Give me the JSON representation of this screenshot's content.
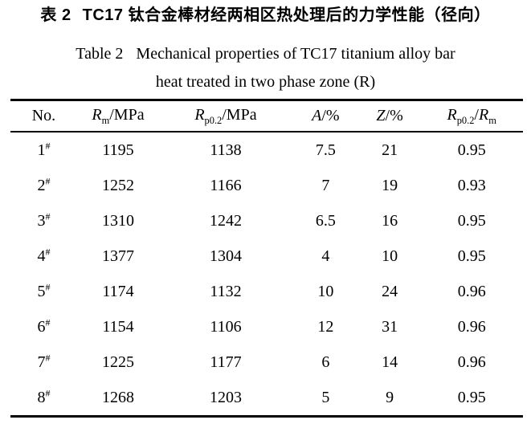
{
  "caption_zh": {
    "label": "表 2",
    "text": "TC17 钛合金棒材经两相区热处理后的力学性能（径向）"
  },
  "caption_en": {
    "label": "Table 2",
    "line1": "Mechanical properties of TC17 titanium alloy bar",
    "line2": "heat treated in two phase zone (R)"
  },
  "table": {
    "columns": [
      {
        "name": "no",
        "parts": [
          {
            "t": "No.",
            "s": "plain"
          }
        ]
      },
      {
        "name": "rm",
        "parts": [
          {
            "t": "R",
            "s": "italic"
          },
          {
            "t": "m",
            "s": "sub"
          },
          {
            "t": "/MPa",
            "s": "plain"
          }
        ]
      },
      {
        "name": "rp02",
        "parts": [
          {
            "t": "R",
            "s": "italic"
          },
          {
            "t": "p0.2",
            "s": "sub"
          },
          {
            "t": "/MPa",
            "s": "plain"
          }
        ]
      },
      {
        "name": "a",
        "parts": [
          {
            "t": "A",
            "s": "italic"
          },
          {
            "t": "/%",
            "s": "plain"
          }
        ]
      },
      {
        "name": "z",
        "parts": [
          {
            "t": "Z",
            "s": "italic"
          },
          {
            "t": "/%",
            "s": "plain"
          }
        ]
      },
      {
        "name": "ratio",
        "parts": [
          {
            "t": "R",
            "s": "italic"
          },
          {
            "t": "p0.2",
            "s": "sub"
          },
          {
            "t": "/",
            "s": "plain"
          },
          {
            "t": "R",
            "s": "italic"
          },
          {
            "t": "m",
            "s": "sub"
          }
        ]
      }
    ],
    "no_suffix": "#",
    "rows": [
      [
        "1",
        "1195",
        "1138",
        "7.5",
        "21",
        "0.95"
      ],
      [
        "2",
        "1252",
        "1166",
        "7",
        "19",
        "0.93"
      ],
      [
        "3",
        "1310",
        "1242",
        "6.5",
        "16",
        "0.95"
      ],
      [
        "4",
        "1377",
        "1304",
        "4",
        "10",
        "0.95"
      ],
      [
        "5",
        "1174",
        "1132",
        "10",
        "24",
        "0.96"
      ],
      [
        "6",
        "1154",
        "1106",
        "12",
        "31",
        "0.96"
      ],
      [
        "7",
        "1225",
        "1177",
        "6",
        "14",
        "0.96"
      ],
      [
        "8",
        "1268",
        "1203",
        "5",
        "9",
        "0.95"
      ]
    ]
  }
}
